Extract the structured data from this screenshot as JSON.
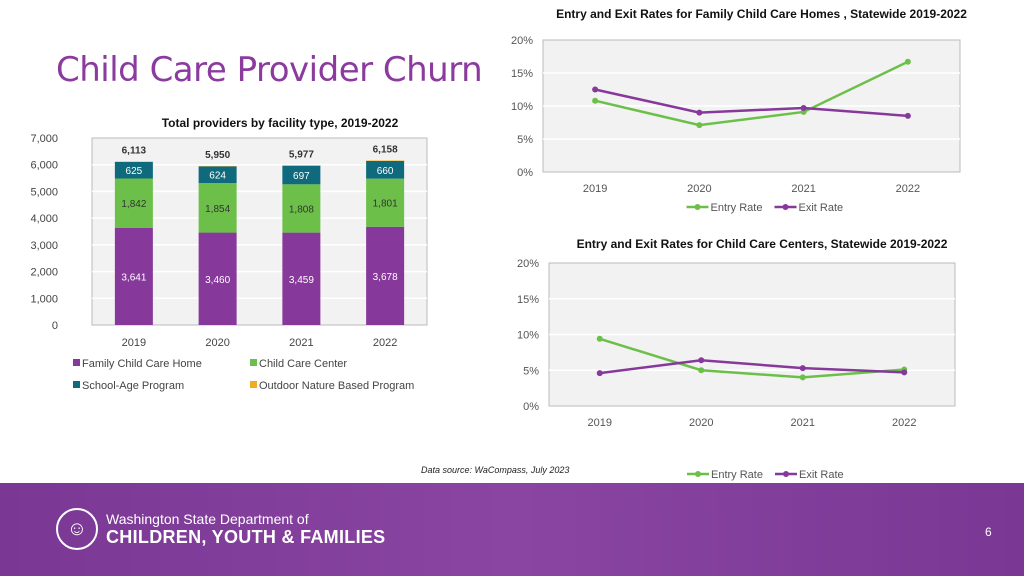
{
  "title": "Child Care Provider Churn",
  "source": "Data source: WaCompass, July 2023",
  "page_number": "6",
  "logo": {
    "line1": "Washington State Department of",
    "line2": "CHILDREN, YOUTH & FAMILIES"
  },
  "colors": {
    "purple": "#86399a",
    "green": "#6cc04a",
    "teal": "#0e6a7c",
    "orange": "#f0ad22",
    "plot_bg": "#f2f2f2",
    "footer": "#7e3b98"
  },
  "chart_data": [
    {
      "type": "bar",
      "stacked": true,
      "title": "Total providers by facility type, 2019-2022",
      "categories": [
        "2019",
        "2020",
        "2021",
        "2022"
      ],
      "ylim": [
        0,
        7000
      ],
      "yticks": [
        "0",
        "1,000",
        "2,000",
        "3,000",
        "4,000",
        "5,000",
        "6,000",
        "7,000"
      ],
      "series": [
        {
          "name": "Family Child Care Home",
          "values": [
            3641,
            3460,
            3459,
            3678
          ],
          "labels": [
            "3,641",
            "3,460",
            "3,459",
            "3,678"
          ],
          "color": "#86399a"
        },
        {
          "name": "Child Care Center",
          "values": [
            1842,
            1854,
            1808,
            1801
          ],
          "labels": [
            "1,842",
            "1,854",
            "1,808",
            "1,801"
          ],
          "color": "#6cc04a"
        },
        {
          "name": "School-Age Program",
          "values": [
            625,
            624,
            697,
            660
          ],
          "labels": [
            "625",
            "624",
            "697",
            "660"
          ],
          "color": "#0e6a7c"
        },
        {
          "name": "Outdoor Nature Based Program",
          "values": [
            5,
            12,
            13,
            19
          ],
          "labels": [],
          "color": "#f0ad22"
        }
      ],
      "totals": [
        "6,113",
        "5,950",
        "5,977",
        "6,158"
      ],
      "grid": true,
      "legend": "bottom"
    },
    {
      "type": "line",
      "title": "Entry and Exit Rates for Family Child Care Homes , Statewide 2019-2022",
      "categories": [
        "2019",
        "2020",
        "2021",
        "2022"
      ],
      "ylim": [
        0,
        20
      ],
      "yticks": [
        "0%",
        "5%",
        "10%",
        "15%",
        "20%"
      ],
      "series": [
        {
          "name": "Entry Rate",
          "values": [
            10.8,
            7.1,
            9.1,
            16.7
          ],
          "color": "#6cc04a"
        },
        {
          "name": "Exit Rate",
          "values": [
            12.5,
            9.0,
            9.7,
            8.5
          ],
          "color": "#86399a"
        }
      ],
      "grid": true,
      "legend": "bottom"
    },
    {
      "type": "line",
      "title": "Entry and Exit Rates for Child Care Centers, Statewide 2019-2022",
      "categories": [
        "2019",
        "2020",
        "2021",
        "2022"
      ],
      "ylim": [
        0,
        20
      ],
      "yticks": [
        "0%",
        "5%",
        "10%",
        "15%",
        "20%"
      ],
      "series": [
        {
          "name": "Entry Rate",
          "values": [
            9.4,
            5.0,
            4.0,
            5.1
          ],
          "color": "#6cc04a"
        },
        {
          "name": "Exit Rate",
          "values": [
            4.6,
            6.4,
            5.3,
            4.7
          ],
          "color": "#86399a"
        }
      ],
      "grid": true,
      "legend": "bottom"
    }
  ]
}
